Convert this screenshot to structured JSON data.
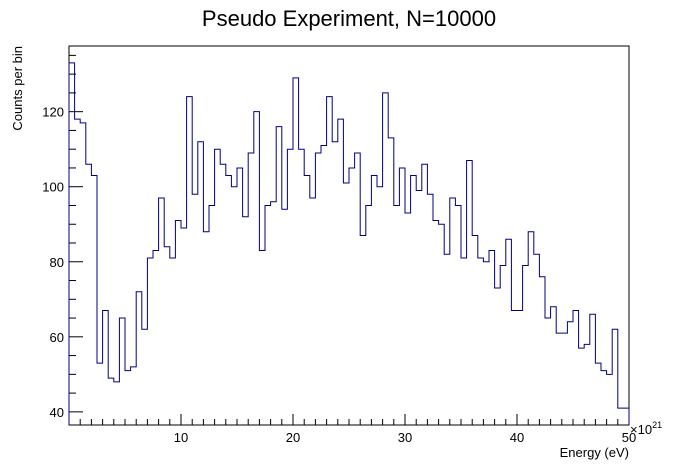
{
  "chart_data": {
    "type": "histogram",
    "title": "Pseudo Experiment, N=10000",
    "xlabel": "Energy (eV)",
    "ylabel": "Counts per bin",
    "x_exponent_base": "×10",
    "x_exponent_power": "21",
    "xlim": [
      0,
      50
    ],
    "ylim": [
      36.5,
      137.5
    ],
    "x_tick_labels": [
      "10",
      "20",
      "30",
      "40",
      "50"
    ],
    "x_ticks": [
      10,
      20,
      30,
      40,
      50
    ],
    "y_tick_labels": [
      "40",
      "60",
      "80",
      "100",
      "120"
    ],
    "y_ticks": [
      40,
      60,
      80,
      100,
      120
    ],
    "bin_width": 0.5,
    "bin_start": 0,
    "values": [
      133,
      118,
      117,
      106,
      103,
      53,
      67,
      49,
      48,
      65,
      51,
      52,
      72,
      62,
      81,
      83,
      97,
      84,
      81,
      91,
      89,
      124,
      98,
      112,
      88,
      95,
      110,
      106,
      103,
      100,
      105,
      92,
      109,
      120,
      83,
      95,
      96,
      116,
      94,
      110,
      129,
      110,
      103,
      97,
      109,
      111,
      124,
      112,
      118,
      101,
      105,
      109,
      87,
      95,
      103,
      100,
      125,
      113,
      95,
      105,
      93,
      103,
      99,
      106,
      98,
      91,
      90,
      82,
      97,
      95,
      81,
      107,
      87,
      81,
      80,
      83,
      73,
      79,
      86,
      67,
      67,
      79,
      88,
      82,
      76,
      65,
      68,
      61,
      61,
      64,
      67,
      57,
      58,
      66,
      53,
      51,
      50,
      62,
      41,
      41
    ],
    "grid": false,
    "line_color": "#000080"
  }
}
